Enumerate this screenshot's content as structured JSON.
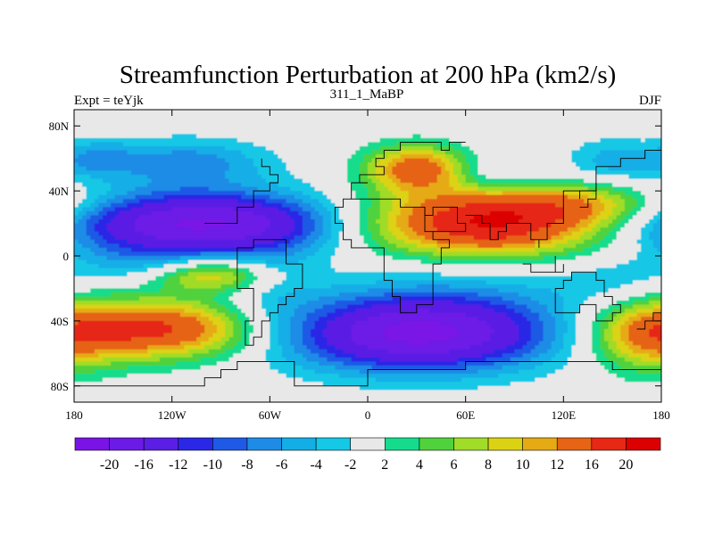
{
  "chart_data": {
    "type": "heatmap",
    "title": "Streamfunction Perturbation at 200 hPa (km2/s)",
    "left_label": "Expt = teYjk",
    "center_label": "311_1_MaBP",
    "right_label": "DJF",
    "x_ticks": [
      "180",
      "120W",
      "60W",
      "0",
      "60E",
      "120E",
      "180"
    ],
    "y_ticks": [
      "80N",
      "40N",
      "0",
      "40S",
      "80S"
    ],
    "x_range": [
      -180,
      180
    ],
    "y_range": [
      -90,
      90
    ],
    "colorbar": {
      "colors": [
        "#7a14e6",
        "#6c1ae6",
        "#5a1ee4",
        "#2a28e6",
        "#1e5ae6",
        "#1e8ce6",
        "#14aee6",
        "#14c8e6",
        "#e8e8e8",
        "#14dc8c",
        "#50d23c",
        "#a0dc28",
        "#dcd214",
        "#e6aa14",
        "#e66414",
        "#e62814",
        "#dc0000"
      ],
      "labels": [
        "-20",
        "-16",
        "-12",
        "-10",
        "-8",
        "-6",
        "-4",
        "-2",
        "2",
        "4",
        "6",
        "8",
        "10",
        "12",
        "16",
        "20"
      ]
    },
    "blobs": [
      {
        "lon": -100,
        "lat": 20,
        "a": 70,
        "b": 14,
        "value": -21
      },
      {
        "lon": -112,
        "lat": 58,
        "a": 36,
        "b": 10,
        "value": -7
      },
      {
        "lon": -165,
        "lat": 60,
        "a": 15,
        "b": 8,
        "value": -5
      },
      {
        "lon": 68,
        "lat": 20,
        "a": 62,
        "b": 15,
        "value": 21
      },
      {
        "lon": 135,
        "lat": 32,
        "a": 40,
        "b": 9,
        "value": 7
      },
      {
        "lon": 30,
        "lat": 54,
        "a": 22,
        "b": 10,
        "value": 14
      },
      {
        "lon": 150,
        "lat": 58,
        "a": 20,
        "b": 10,
        "value": -5
      },
      {
        "lon": 80,
        "lat": 50,
        "a": 22,
        "b": 8,
        "value": -4
      },
      {
        "lon": 30,
        "lat": -48,
        "a": 58,
        "b": 16,
        "value": -21
      },
      {
        "lon": -130,
        "lat": -45,
        "a": 48,
        "b": 13,
        "value": 17
      },
      {
        "lon": -95,
        "lat": -12,
        "a": 25,
        "b": 7,
        "value": 11
      },
      {
        "lon": -60,
        "lat": -20,
        "a": 22,
        "b": 22,
        "value": -3
      },
      {
        "lon": 60,
        "lat": -20,
        "a": 55,
        "b": 18,
        "value": -3
      },
      {
        "lon": 170,
        "lat": -50,
        "a": 25,
        "b": 16,
        "value": 9
      },
      {
        "lon": -140,
        "lat": -5,
        "a": 30,
        "b": 10,
        "value": -3
      },
      {
        "lon": 150,
        "lat": -15,
        "a": 25,
        "b": 10,
        "value": -3
      }
    ]
  }
}
